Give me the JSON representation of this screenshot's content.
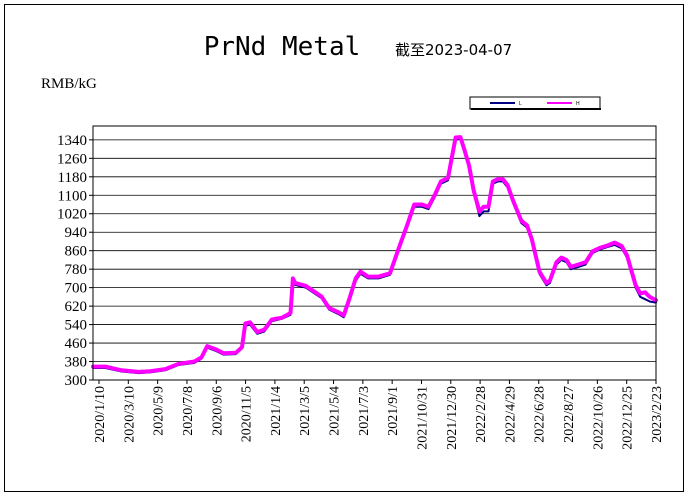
{
  "chart_data": {
    "type": "line",
    "title": "PrNd Metal",
    "subtitle": "截至2023-04-07",
    "ylabel": "RMB/kG",
    "xlabel": "",
    "ylim": [
      300,
      1400
    ],
    "yticks": [
      300,
      380,
      460,
      540,
      620,
      700,
      780,
      860,
      940,
      1020,
      1100,
      1180,
      1260,
      1340
    ],
    "x_tick_labels": [
      "2020/1/10",
      "2020/3/10",
      "2020/5/9",
      "2020/7/8",
      "2020/9/6",
      "2020/11/5",
      "2021/1/4",
      "2021/3/5",
      "2021/5/4",
      "2021/7/3",
      "2021/9/1",
      "2021/10/31",
      "2021/12/30",
      "2022/2/28",
      "2022/4/29",
      "2022/6/28",
      "2022/8/27",
      "2022/10/26",
      "2022/12/25",
      "2023/2/23"
    ],
    "x_range": [
      "2020-01-10",
      "2023-04-07"
    ],
    "grid": "horizontal",
    "legend_position": "top-right",
    "series": [
      {
        "name": "L",
        "color": "#000080",
        "width": 2,
        "x": [
          "2020-01-10",
          "2020-02-05",
          "2020-03-10",
          "2020-04-15",
          "2020-05-09",
          "2020-06-10",
          "2020-07-08",
          "2020-08-10",
          "2020-08-25",
          "2020-09-06",
          "2020-09-25",
          "2020-10-10",
          "2020-11-05",
          "2020-11-18",
          "2020-11-25",
          "2020-12-05",
          "2020-12-20",
          "2021-01-04",
          "2021-01-20",
          "2021-02-10",
          "2021-02-28",
          "2021-03-05",
          "2021-03-10",
          "2021-04-01",
          "2021-05-04",
          "2021-05-20",
          "2021-06-10",
          "2021-06-20",
          "2021-07-03",
          "2021-07-15",
          "2021-07-25",
          "2021-08-10",
          "2021-09-01",
          "2021-09-25",
          "2021-10-15",
          "2021-10-31",
          "2021-11-15",
          "2021-12-01",
          "2021-12-15",
          "2021-12-30",
          "2022-01-10",
          "2022-01-25",
          "2022-02-10",
          "2022-02-20",
          "2022-02-28",
          "2022-03-10",
          "2022-03-20",
          "2022-04-01",
          "2022-04-10",
          "2022-04-20",
          "2022-04-29",
          "2022-05-10",
          "2022-05-20",
          "2022-05-30",
          "2022-06-10",
          "2022-06-28",
          "2022-07-10",
          "2022-07-20",
          "2022-08-05",
          "2022-08-20",
          "2022-08-27",
          "2022-09-10",
          "2022-09-20",
          "2022-10-01",
          "2022-10-10",
          "2022-10-26",
          "2022-11-10",
          "2022-11-25",
          "2022-12-10",
          "2022-12-25",
          "2023-01-10",
          "2023-01-25",
          "2023-02-05",
          "2023-02-23",
          "2023-03-05",
          "2023-03-15",
          "2023-03-25",
          "2023-04-07"
        ],
        "values": [
          352,
          352,
          337,
          330,
          333,
          342,
          365,
          374,
          392,
          440,
          425,
          410,
          412,
          437,
          535,
          540,
          500,
          510,
          555,
          565,
          582,
          715,
          712,
          700,
          655,
          605,
          584,
          572,
          650,
          730,
          760,
          740,
          740,
          755,
          870,
          960,
          1050,
          1050,
          1040,
          1100,
          1150,
          1165,
          1340,
          1345,
          1290,
          1220,
          1110,
          1010,
          1030,
          1030,
          1150,
          1160,
          1160,
          1135,
          1070,
          980,
          960,
          900,
          760,
          710,
          720,
          800,
          820,
          810,
          780,
          790,
          800,
          850,
          865,
          875,
          885,
          870,
          830,
          700,
          660,
          650,
          640,
          635
        ]
      },
      {
        "name": "H",
        "color": "#ff00ff",
        "width": 4,
        "x": [
          "2020-01-10",
          "2020-02-05",
          "2020-03-10",
          "2020-04-15",
          "2020-05-09",
          "2020-06-10",
          "2020-07-08",
          "2020-08-10",
          "2020-08-25",
          "2020-09-06",
          "2020-09-25",
          "2020-10-10",
          "2020-11-05",
          "2020-11-18",
          "2020-11-25",
          "2020-12-05",
          "2020-12-20",
          "2021-01-04",
          "2021-01-20",
          "2021-02-10",
          "2021-02-28",
          "2021-03-05",
          "2021-03-10",
          "2021-04-01",
          "2021-05-04",
          "2021-05-20",
          "2021-06-10",
          "2021-06-20",
          "2021-07-03",
          "2021-07-15",
          "2021-07-25",
          "2021-08-10",
          "2021-09-01",
          "2021-09-25",
          "2021-10-15",
          "2021-10-31",
          "2021-11-15",
          "2021-12-01",
          "2021-12-15",
          "2021-12-30",
          "2022-01-10",
          "2022-01-25",
          "2022-02-10",
          "2022-02-20",
          "2022-02-28",
          "2022-03-10",
          "2022-03-20",
          "2022-04-01",
          "2022-04-10",
          "2022-04-20",
          "2022-04-29",
          "2022-05-10",
          "2022-05-20",
          "2022-05-30",
          "2022-06-10",
          "2022-06-28",
          "2022-07-10",
          "2022-07-20",
          "2022-08-05",
          "2022-08-20",
          "2022-08-27",
          "2022-09-10",
          "2022-09-20",
          "2022-10-01",
          "2022-10-10",
          "2022-10-26",
          "2022-11-10",
          "2022-11-25",
          "2022-12-10",
          "2022-12-25",
          "2023-01-10",
          "2023-01-25",
          "2023-02-05",
          "2023-02-23",
          "2023-03-05",
          "2023-03-15",
          "2023-03-25",
          "2023-04-07"
        ],
        "values": [
          358,
          358,
          342,
          335,
          338,
          347,
          370,
          380,
          398,
          447,
          432,
          416,
          418,
          442,
          545,
          550,
          508,
          518,
          562,
          570,
          590,
          740,
          720,
          708,
          662,
          612,
          592,
          580,
          660,
          740,
          770,
          748,
          748,
          762,
          880,
          970,
          1060,
          1060,
          1050,
          1110,
          1160,
          1175,
          1350,
          1352,
          1300,
          1230,
          1120,
          1030,
          1050,
          1050,
          1160,
          1170,
          1170,
          1145,
          1080,
          990,
          970,
          910,
          770,
          720,
          730,
          810,
          830,
          820,
          790,
          800,
          810,
          858,
          872,
          882,
          895,
          880,
          840,
          712,
          675,
          680,
          660,
          645
        ]
      }
    ]
  }
}
